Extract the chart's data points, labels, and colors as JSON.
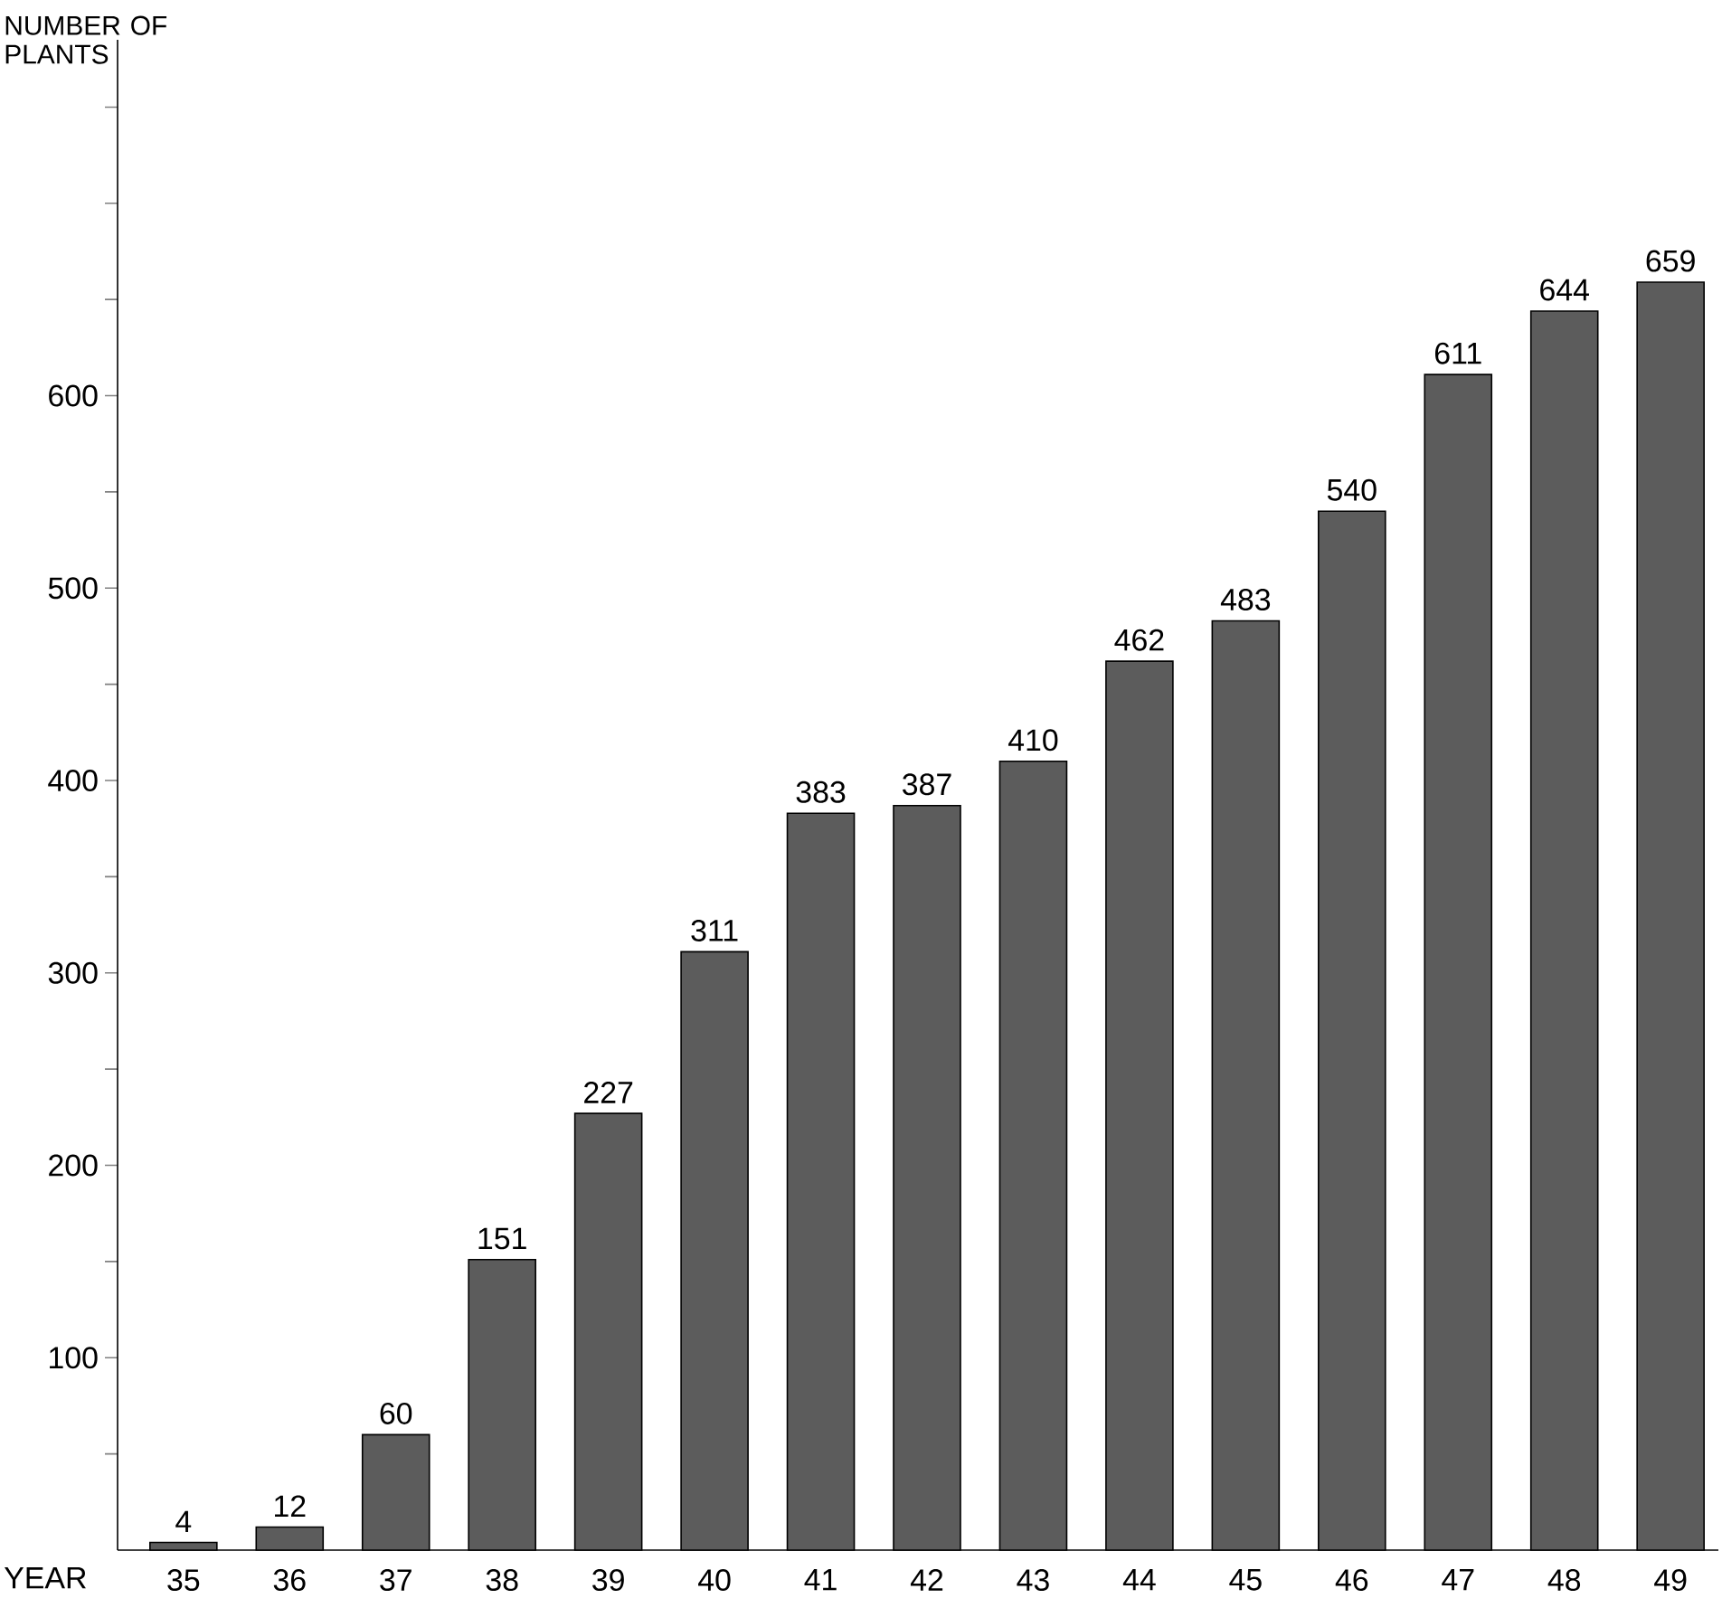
{
  "chart_data": {
    "type": "bar",
    "ylabel": "NUMBER OF PLANTS",
    "xlabel": "YEAR",
    "categories": [
      "35",
      "36",
      "37",
      "38",
      "39",
      "40",
      "41",
      "42",
      "43",
      "44",
      "45",
      "46",
      "47",
      "48",
      "49"
    ],
    "values": [
      4,
      12,
      60,
      151,
      227,
      311,
      383,
      387,
      410,
      462,
      483,
      540,
      611,
      644,
      659
    ],
    "color": "#5c5c5c",
    "ylim": [
      0,
      785
    ],
    "yticks": [
      {
        "value": 50,
        "label": null
      },
      100,
      {
        "value": 150,
        "label": null
      },
      200,
      {
        "value": 250,
        "label": null
      },
      300,
      {
        "value": 350,
        "label": null
      },
      400,
      {
        "value": 450,
        "label": null
      },
      500,
      {
        "value": 550,
        "label": null
      },
      600,
      {
        "value": 650,
        "label": null
      },
      {
        "value": 700,
        "label": null
      },
      {
        "value": 750,
        "label": null
      }
    ],
    "data_labels": true,
    "grid": false
  }
}
